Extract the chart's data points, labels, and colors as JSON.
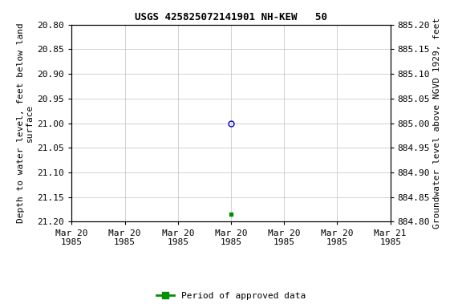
{
  "title": "USGS 425825072141901 NH-KEW   50",
  "ylabel_left": "Depth to water level, feet below land\nsurface",
  "ylabel_right": "Groundwater level above NGVD 1929, feet",
  "ylim_left_top": 20.8,
  "ylim_left_bottom": 21.2,
  "ylim_right_top": 885.2,
  "ylim_right_bottom": 884.8,
  "yticks_left": [
    20.8,
    20.85,
    20.9,
    20.95,
    21.0,
    21.05,
    21.1,
    21.15,
    21.2
  ],
  "yticks_right": [
    885.2,
    885.15,
    885.1,
    885.05,
    885.0,
    884.95,
    884.9,
    884.85,
    884.8
  ],
  "xtick_labels": [
    "Mar 20\n1985",
    "Mar 20\n1985",
    "Mar 20\n1985",
    "Mar 20\n1985",
    "Mar 20\n1985",
    "Mar 20\n1985",
    "Mar 21\n1985"
  ],
  "point1_x": 3.0,
  "point1_y": 21.0,
  "point1_color": "#0000bb",
  "point1_marker": "o",
  "point1_markersize": 5,
  "point2_x": 3.0,
  "point2_y": 21.185,
  "point2_color": "#009000",
  "point2_marker": "s",
  "point2_markersize": 3,
  "xmin": 0,
  "xmax": 6,
  "background_color": "#ffffff",
  "grid_color": "#c0c0c0",
  "legend_label": "Period of approved data",
  "legend_color": "#009000",
  "title_fontsize": 9,
  "tick_fontsize": 8,
  "label_fontsize": 8
}
